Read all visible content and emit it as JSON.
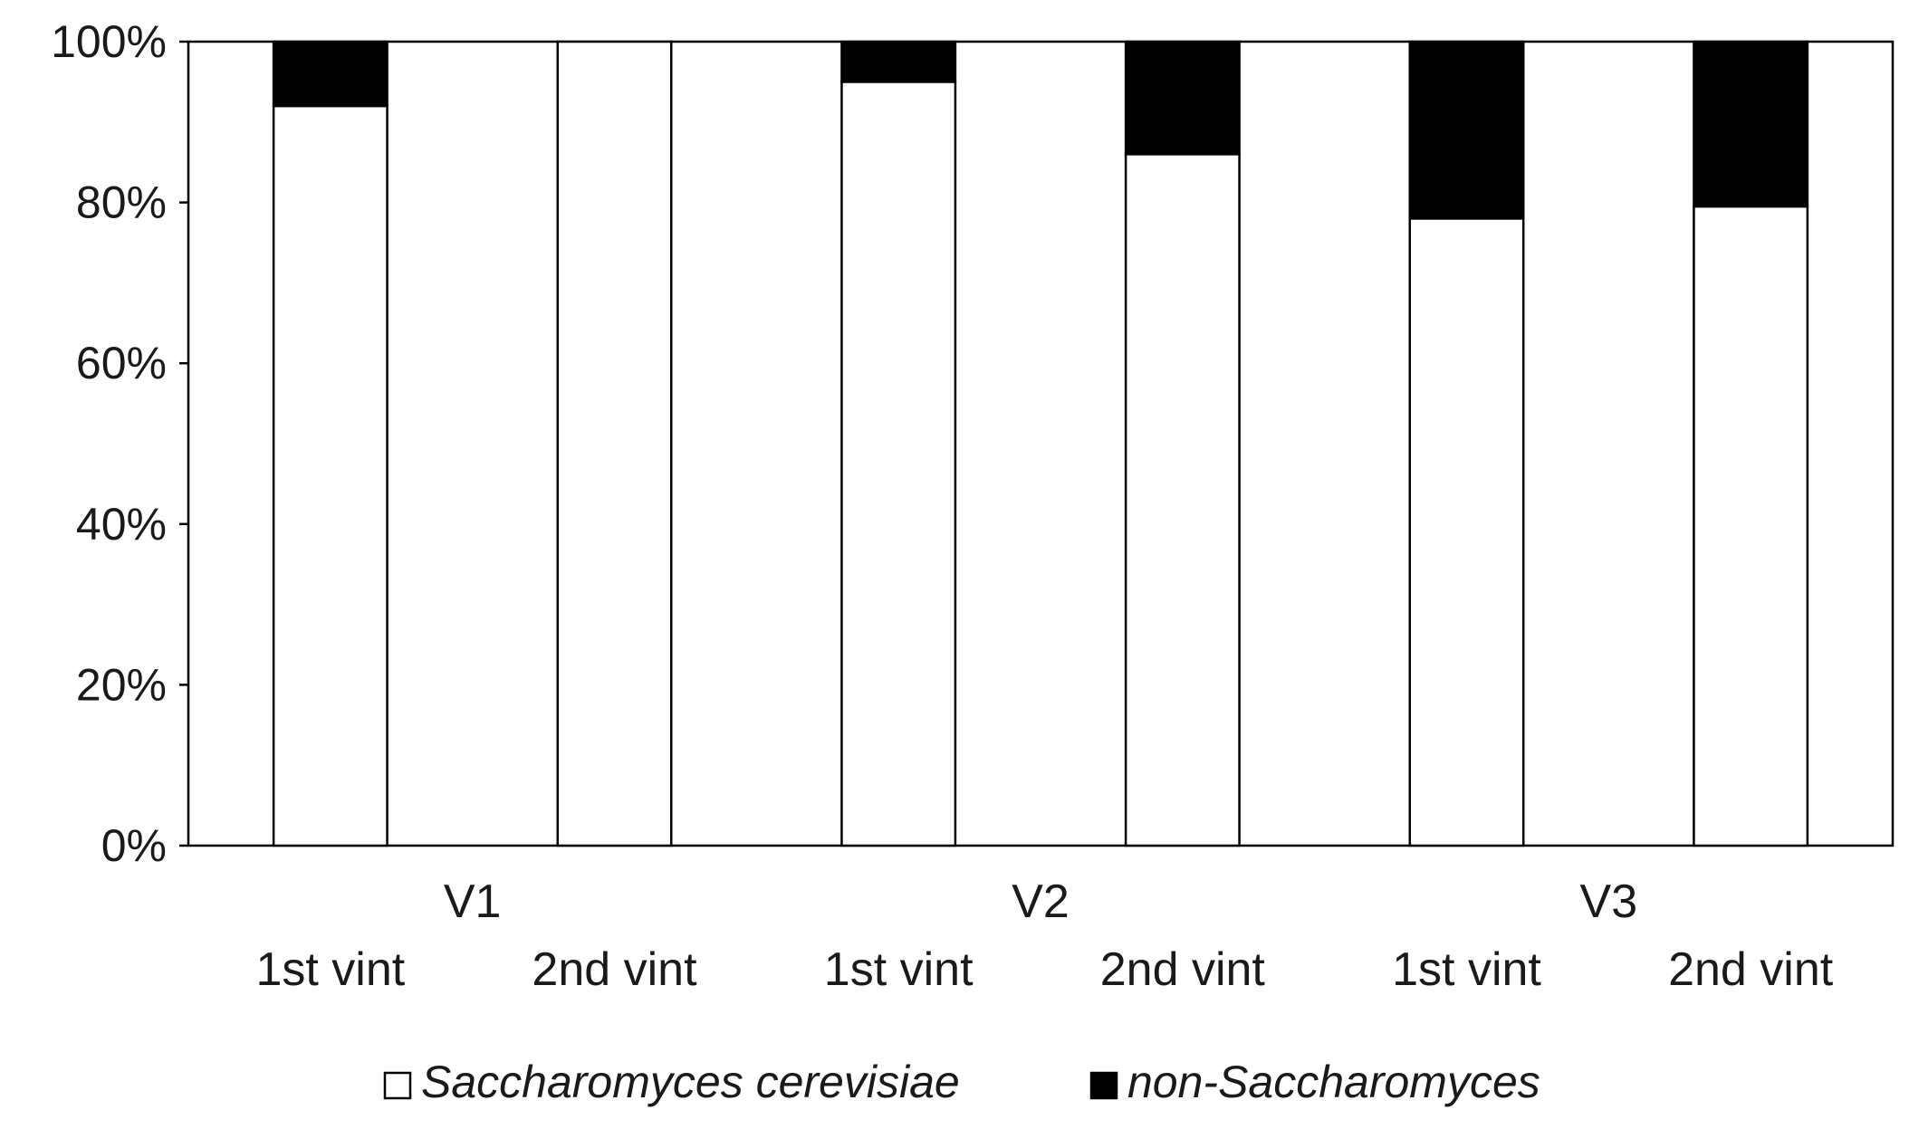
{
  "chart_data": {
    "type": "bar",
    "stacked": true,
    "percent_stacked": true,
    "groups": [
      "V1",
      "V2",
      "V3"
    ],
    "categories": [
      "1st vint",
      "2nd vint",
      "1st vint",
      "2nd vint",
      "1st vint",
      "2nd vint"
    ],
    "series": [
      {
        "name": "Saccharomyces cerevisiae",
        "values": [
          92,
          100,
          95,
          86,
          78,
          79.5
        ],
        "color": "#ffffff"
      },
      {
        "name": "non-Saccharomyces",
        "values": [
          8,
          0,
          5,
          14,
          22,
          20.5
        ],
        "color": "#000000"
      }
    ],
    "ylim": [
      0,
      100
    ],
    "yticks": [
      "0%",
      "20%",
      "40%",
      "60%",
      "80%",
      "100%"
    ],
    "grid": false,
    "legend_position": "bottom",
    "title": "",
    "xlabel": "",
    "ylabel": ""
  }
}
